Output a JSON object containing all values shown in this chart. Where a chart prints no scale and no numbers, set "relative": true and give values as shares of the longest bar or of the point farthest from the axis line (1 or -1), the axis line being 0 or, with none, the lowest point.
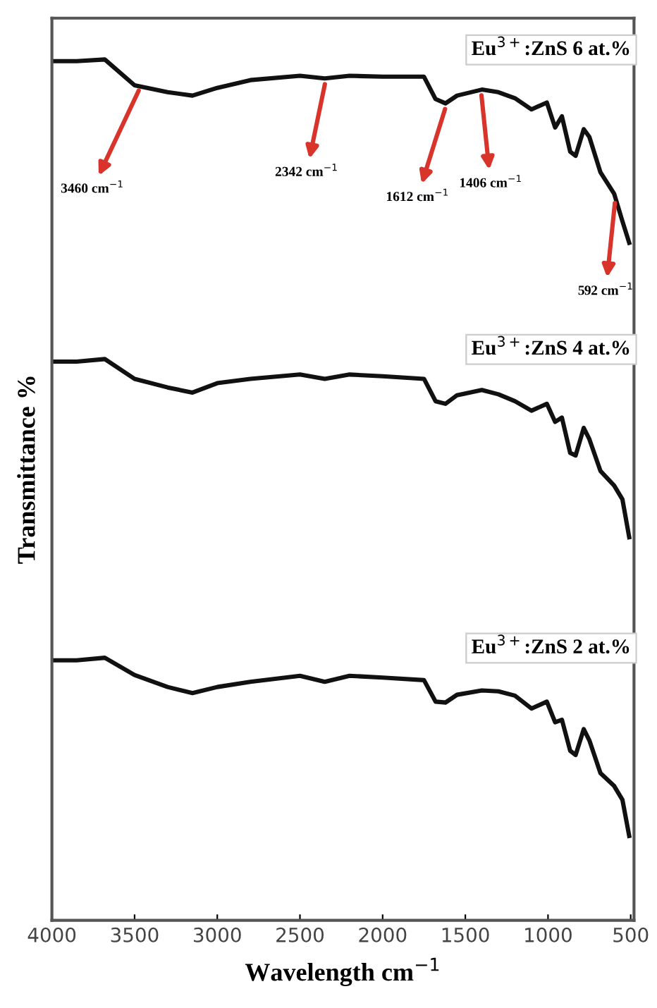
{
  "chart_data": {
    "type": "line",
    "relative": true,
    "xlabel": "Wavelength cm$^{−1}$",
    "ylabel": "Transmittance %",
    "xlim": [
      4000,
      480
    ],
    "xticks": [
      4000,
      3500,
      3000,
      2500,
      2000,
      1500,
      1000,
      500
    ],
    "grid": false,
    "legend": false,
    "tick_labels": "x",
    "line_style": "solid",
    "marker": "none",
    "x": [
      4000,
      3850,
      3680,
      3500,
      3300,
      3150,
      3000,
      2800,
      2500,
      2350,
      2200,
      2000,
      1750,
      1680,
      1620,
      1550,
      1400,
      1300,
      1200,
      1100,
      1007,
      957,
      916,
      866,
      833,
      784,
      750,
      683,
      600,
      550,
      509
    ],
    "series": [
      {
        "name": "Eu$^{3+}$:ZnS 6 at.%",
        "color": "#111111",
        "values": [
          0.998,
          0.998,
          1.0,
          0.97,
          0.962,
          0.958,
          0.967,
          0.976,
          0.981,
          0.978,
          0.981,
          0.98,
          0.98,
          0.954,
          0.949,
          0.958,
          0.965,
          0.962,
          0.955,
          0.942,
          0.95,
          0.921,
          0.934,
          0.893,
          0.888,
          0.919,
          0.91,
          0.869,
          0.844,
          0.812,
          0.787
        ]
      },
      {
        "name": "Eu$^{3+}$:ZnS 4 at.%",
        "color": "#111111",
        "values": [
          0.649,
          0.649,
          0.652,
          0.629,
          0.619,
          0.613,
          0.624,
          0.629,
          0.634,
          0.629,
          0.634,
          0.632,
          0.629,
          0.603,
          0.6,
          0.61,
          0.616,
          0.611,
          0.603,
          0.592,
          0.6,
          0.579,
          0.584,
          0.543,
          0.54,
          0.572,
          0.559,
          0.522,
          0.505,
          0.489,
          0.445
        ]
      },
      {
        "name": "Eu$^{3+}$:ZnS 2 at.%",
        "color": "#111111",
        "values": [
          0.302,
          0.302,
          0.305,
          0.285,
          0.271,
          0.264,
          0.271,
          0.277,
          0.284,
          0.277,
          0.284,
          0.282,
          0.279,
          0.254,
          0.253,
          0.262,
          0.267,
          0.266,
          0.261,
          0.246,
          0.254,
          0.23,
          0.233,
          0.197,
          0.192,
          0.222,
          0.209,
          0.171,
          0.156,
          0.14,
          0.098
        ]
      }
    ],
    "annotations": [
      {
        "text": "3460 cm$^{−1}$",
        "x": 3460,
        "y": 0.97
      },
      {
        "text": "2342 cm$^{−1}$",
        "x": 2342,
        "y": 0.978
      },
      {
        "text": "1612 cm$^{−1}$",
        "x": 1612,
        "y": 0.949
      },
      {
        "text": "1406 cm$^{−1}$",
        "x": 1406,
        "y": 0.965
      },
      {
        "text": "592 cm$^{−1}$",
        "x": 592,
        "y": 0.84
      }
    ]
  }
}
